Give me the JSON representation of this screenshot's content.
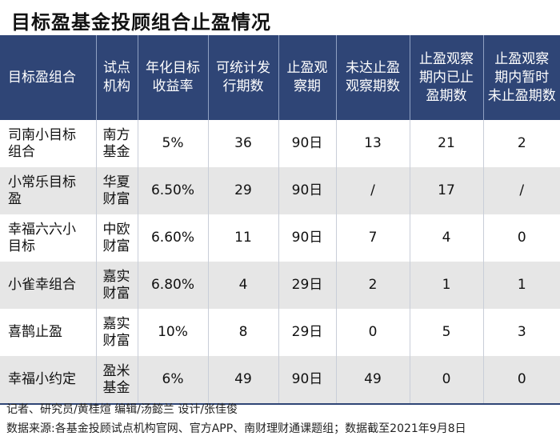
{
  "title": "目标盈基金投顾组合止盈情况",
  "table": {
    "headers": [
      "目标盈组合",
      "试点\n机构",
      "年化目标\n收益率",
      "可统计发\n行期数",
      "止盈观\n察期",
      "未达止盈\n观察期数",
      "止盈观察\n期内已止\n盈期数",
      "止盈观察\n期内暂时\n未止盈期数"
    ],
    "rows": [
      [
        "司南小目标\n组合",
        "南方\n基金",
        "5%",
        "36",
        "90日",
        "13",
        "21",
        "2"
      ],
      [
        "小常乐目标\n盈",
        "华夏\n财富",
        "6.50%",
        "29",
        "90日",
        "/",
        "17",
        "/"
      ],
      [
        "幸福六六小\n目标",
        "中欧\n财富",
        "6.60%",
        "11",
        "90日",
        "7",
        "4",
        "0"
      ],
      [
        "小雀幸组合",
        "嘉实\n财富",
        "6.80%",
        "4",
        "29日",
        "2",
        "1",
        "1"
      ],
      [
        "喜鹊止盈",
        "嘉实\n财富",
        "10%",
        "8",
        "29日",
        "0",
        "5",
        "3"
      ],
      [
        "幸福小约定",
        "盈米\n基金",
        "6%",
        "49",
        "90日",
        "49",
        "0",
        "0"
      ]
    ]
  },
  "footer": {
    "credits": "记者、研究员/黄桂煊  编辑/汤懿兰  设计/张佳俊",
    "source": "数据来源:各基金投顾试点机构官网、官方APP、南财理财通课题组；数据截至2021年9月8日"
  },
  "colors": {
    "header_bg": "#2f4576",
    "stripe_bg": "#e6e6e6"
  }
}
